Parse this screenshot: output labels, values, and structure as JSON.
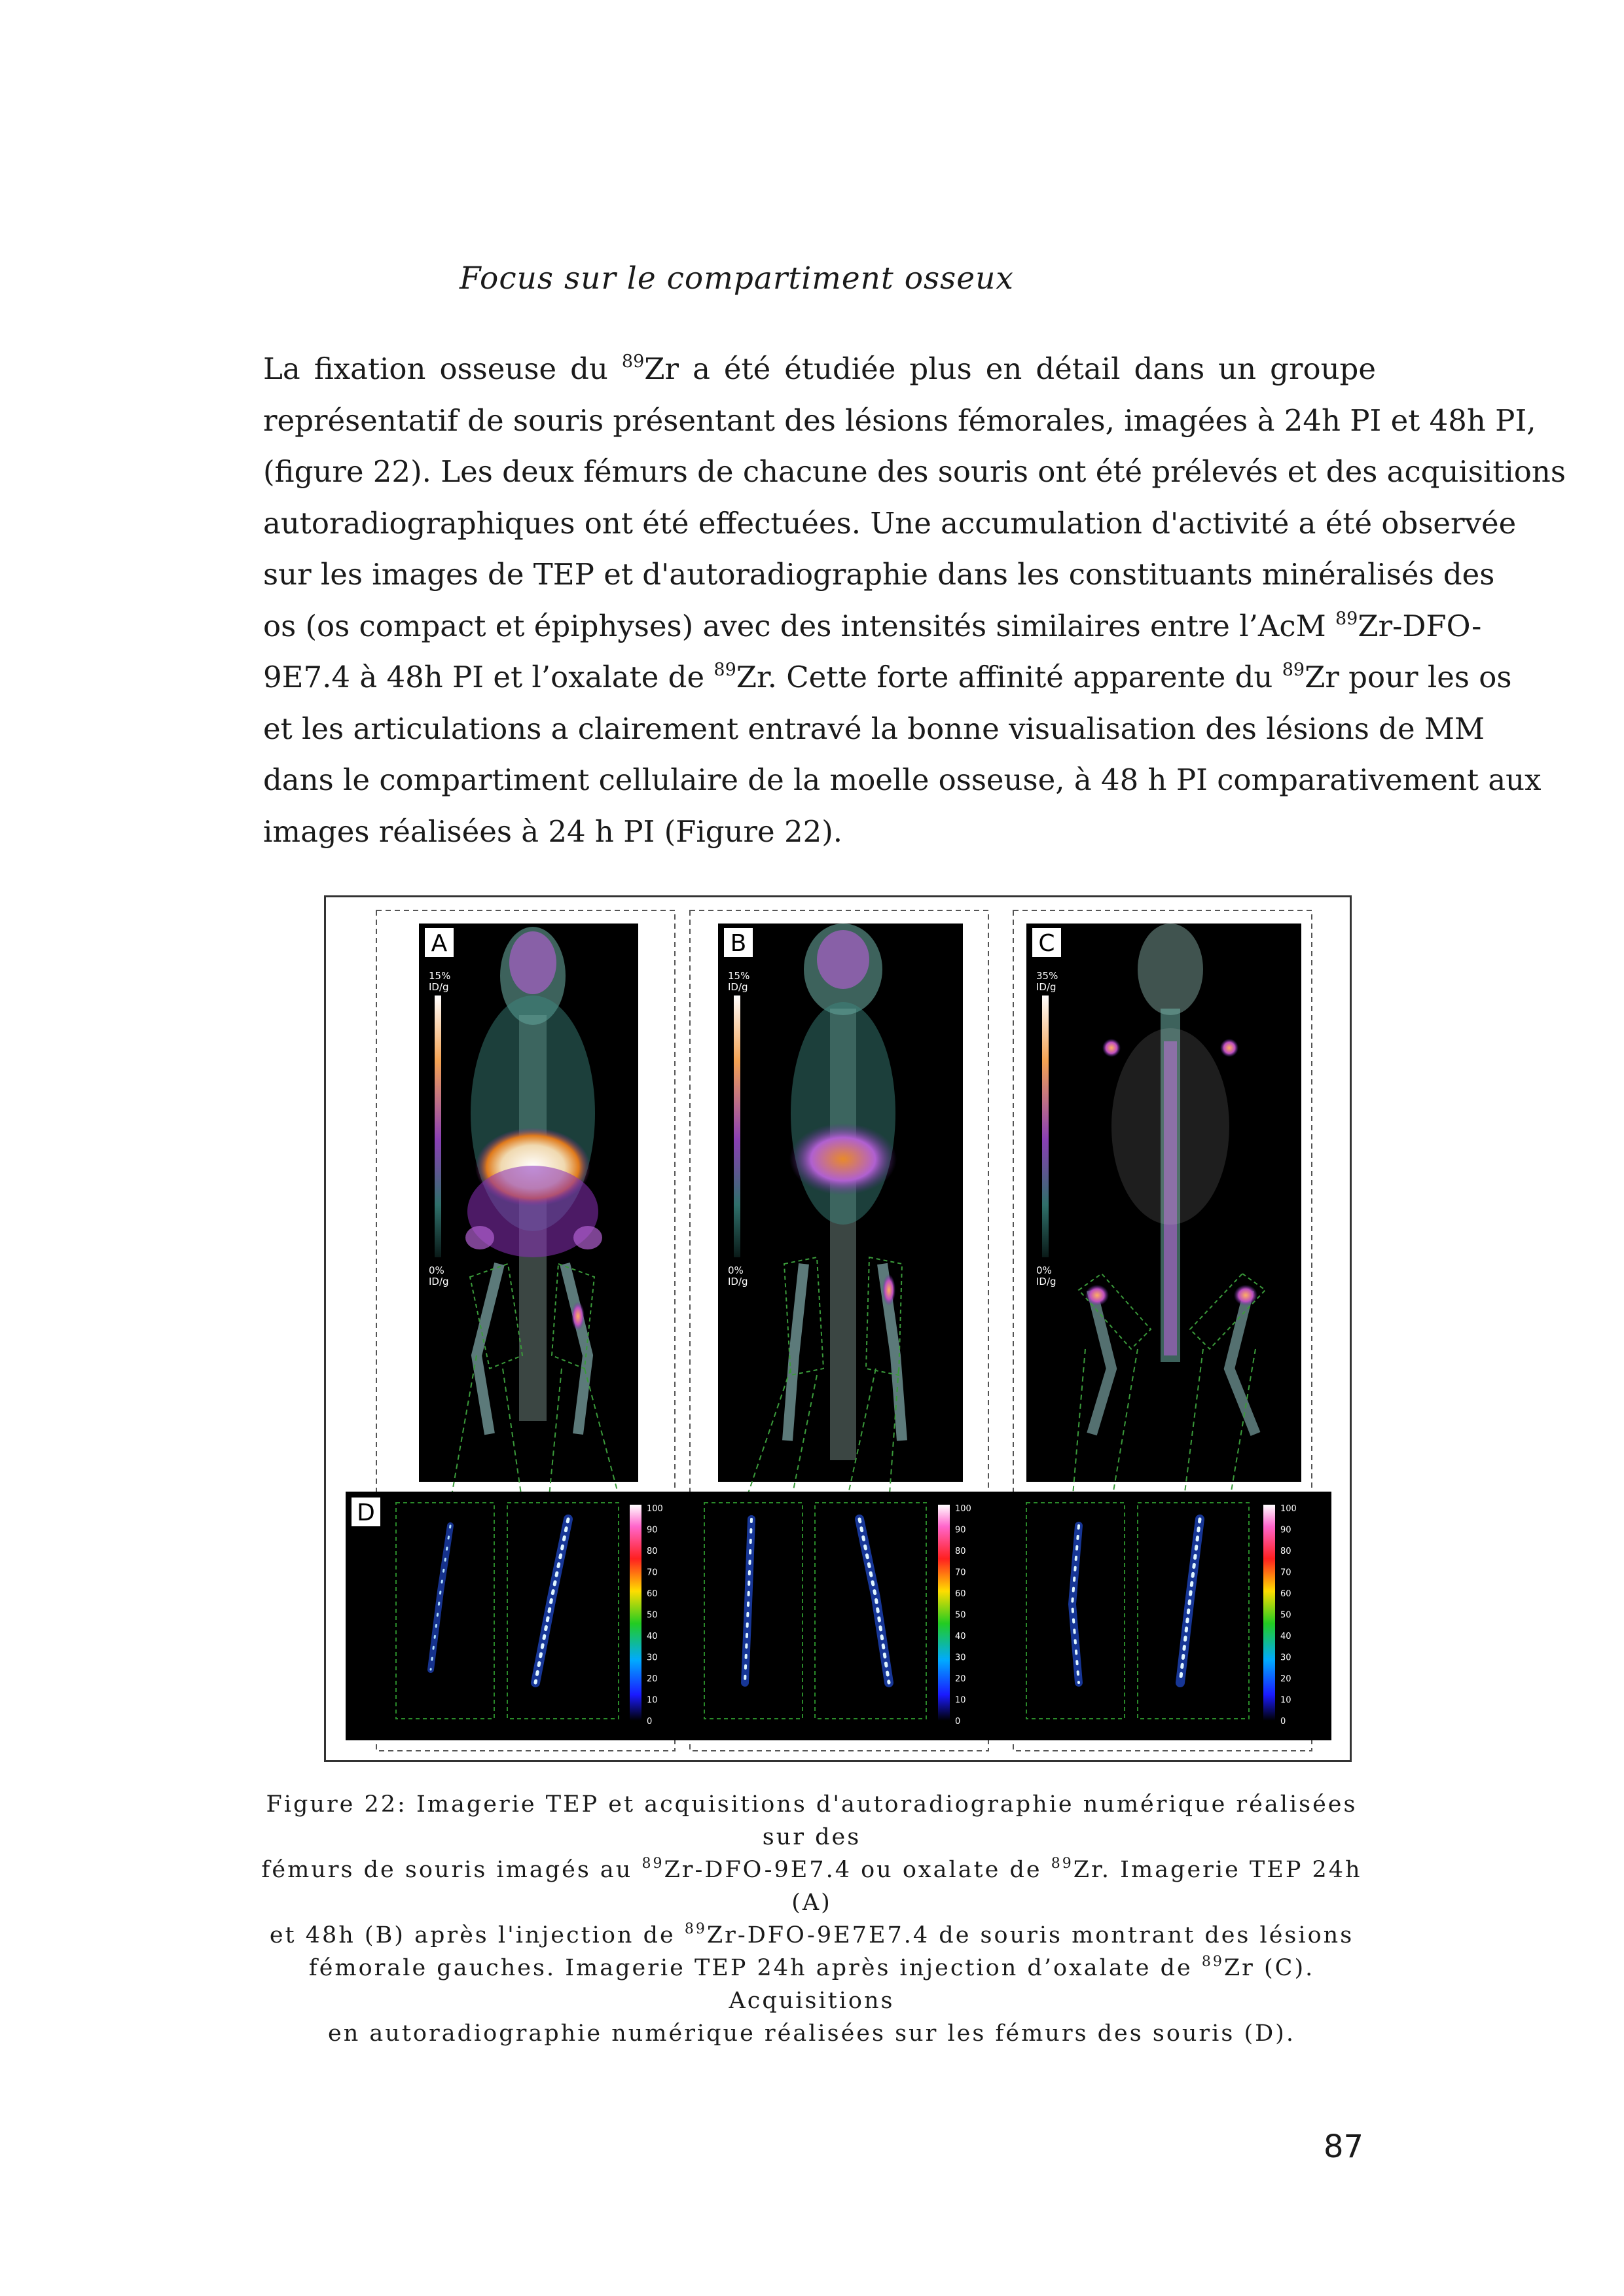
{
  "heading": "Focus sur le compartiment osseux",
  "paragraph": {
    "l1": {
      "a": "La fixation osseuse du ",
      "sup1": "89",
      "b": "Zr a été étudiée plus en détail dans un groupe"
    },
    "l2": "représentatif de souris présentant des lésions fémorales, imagées à 24h PI et 48h PI,",
    "l3": "(figure 22). Les deux fémurs de chacune des souris ont été prélevés et des acquisitions",
    "l4": "autoradiographiques ont été effectuées. Une accumulation d'activité a été observée",
    "l5": "sur les images de TEP et d'autoradiographie dans les constituants minéralisés des",
    "l6": {
      "a": "os (os compact et épiphyses) avec des intensités similaires entre l’AcM ",
      "sup1": "89",
      "b": "Zr-DFO-"
    },
    "l7": {
      "a": "9E7.4 à 48h PI et l’oxalate de ",
      "sup1": "89",
      "b": "Zr. Cette forte affinité apparente du ",
      "sup2": "89",
      "c": "Zr pour les os"
    },
    "l8": "et les articulations a clairement entravé la bonne visualisation des lésions de MM",
    "l9": "dans le compartiment cellulaire de la moelle osseuse, à 48 h PI comparativement aux",
    "l10": "images réalisées à 24 h PI (Figure 22)."
  },
  "figure": {
    "panels": [
      {
        "letter": "A",
        "scale_top": "15%",
        "scale_top_unit": "ID/g",
        "scale_bottom": "0%",
        "scale_bottom_unit": "ID/g"
      },
      {
        "letter": "B",
        "scale_top": "15%",
        "scale_top_unit": "ID/g",
        "scale_bottom": "0%",
        "scale_bottom_unit": "ID/g"
      },
      {
        "letter": "C",
        "scale_top": "35%",
        "scale_top_unit": "ID/g",
        "scale_bottom": "0%",
        "scale_bottom_unit": "ID/g"
      }
    ],
    "panel_d_letter": "D",
    "autorad_scale": [
      "100",
      "90",
      "80",
      "70",
      "60",
      "50",
      "40",
      "30",
      "20",
      "10",
      "0"
    ]
  },
  "caption": {
    "l1": "Figure 22: Imagerie TEP et acquisitions d'autoradiographie numérique réalisées sur des",
    "l2": {
      "a": "fémurs de souris imagés au ",
      "sup1": "89",
      "b": "Zr-DFO-9E7.4 ou oxalate de ",
      "sup2": "89",
      "c": "Zr. Imagerie TEP 24h (A)"
    },
    "l3": {
      "a": "et 48h (B) après l'injection de ",
      "sup1": "89",
      "b": "Zr-DFO-9E7E7.4 de souris montrant des lésions"
    },
    "l4": {
      "a": "fémorale gauches. Imagerie TEP 24h après injection d’oxalate de ",
      "sup1": "89",
      "b": "Zr (C). Acquisitions"
    },
    "l5": "en autoradiographie numérique réalisées sur les fémurs des souris (D)."
  },
  "page_number": "87"
}
